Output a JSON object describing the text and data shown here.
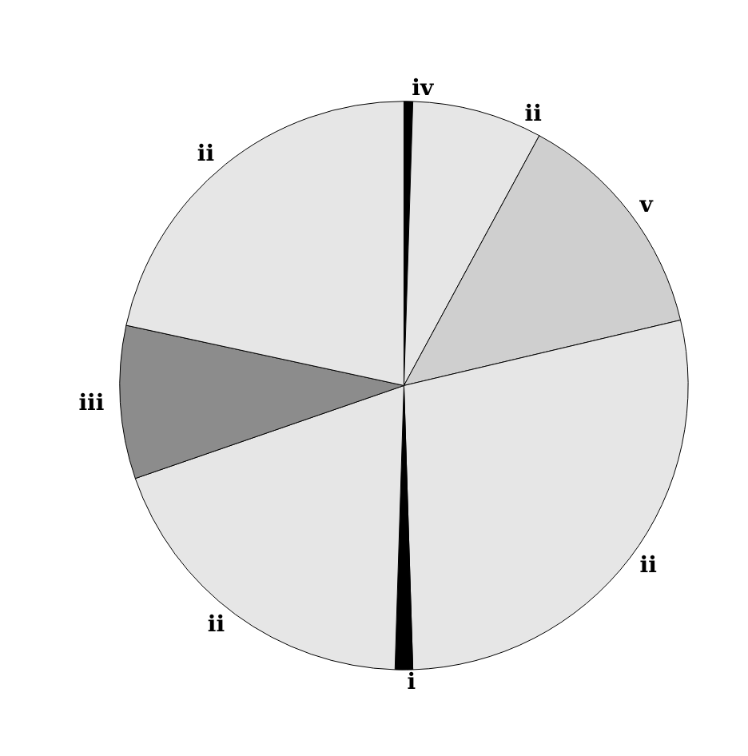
{
  "chart_data": {
    "type": "pie",
    "categories": [
      "iv",
      "ii",
      "v",
      "ii",
      "i",
      "ii",
      "iii",
      "ii"
    ],
    "values": [
      0.5,
      7.4,
      13.4,
      28.2,
      1,
      19.2,
      8.7,
      21.6
    ],
    "colors": [
      "#000000",
      "#e6e6e6",
      "#cfcfcf",
      "#e6e6e6",
      "#000000",
      "#e6e6e6",
      "#8c8c8c",
      "#e6e6e6"
    ],
    "legend": false
  }
}
